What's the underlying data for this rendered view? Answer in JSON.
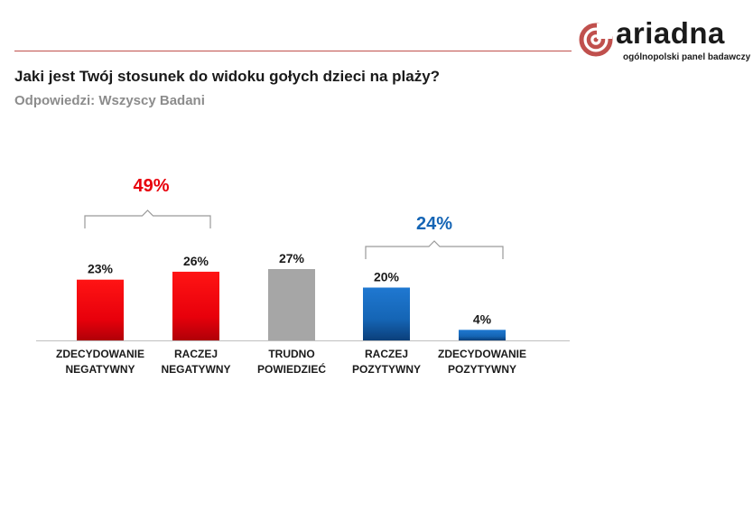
{
  "header": {
    "title": "Jaki jest Twój stosunek do widoku gołych dzieci na plaży?",
    "subtitle": "Odpowiedzi: Wszyscy Badani"
  },
  "logo": {
    "wordmark": "ariadna",
    "tagline": "ogólnopolski panel badawczy"
  },
  "colors": {
    "negative": "#e8000b",
    "neutral": "#a6a6a6",
    "positive": "#1565b5",
    "rule": "#c0504d"
  },
  "chart_data": {
    "type": "bar",
    "title": "Jaki jest Twój stosunek do widoku gołych dzieci na plaży?",
    "xlabel": "",
    "ylabel": "",
    "ylim": [
      0,
      30
    ],
    "unit": "%",
    "categories": [
      [
        "ZDECYDOWANIE",
        "NEGATYWNY"
      ],
      [
        "RACZEJ",
        "NEGATYWNY"
      ],
      [
        "TRUDNO",
        "POWIEDZIEĆ"
      ],
      [
        "RACZEJ",
        "POZYTYWNY"
      ],
      [
        "ZDECYDOWANIE",
        "POZYTYWNY"
      ]
    ],
    "values": [
      23,
      26,
      27,
      20,
      4
    ],
    "value_labels": [
      "23%",
      "26%",
      "27%",
      "20%",
      "4%"
    ],
    "groups": [
      {
        "label": "49%",
        "members": [
          0,
          1
        ],
        "color": "#e8000b"
      },
      {
        "label": "24%",
        "members": [
          3,
          4
        ],
        "color": "#1565b5"
      }
    ]
  }
}
